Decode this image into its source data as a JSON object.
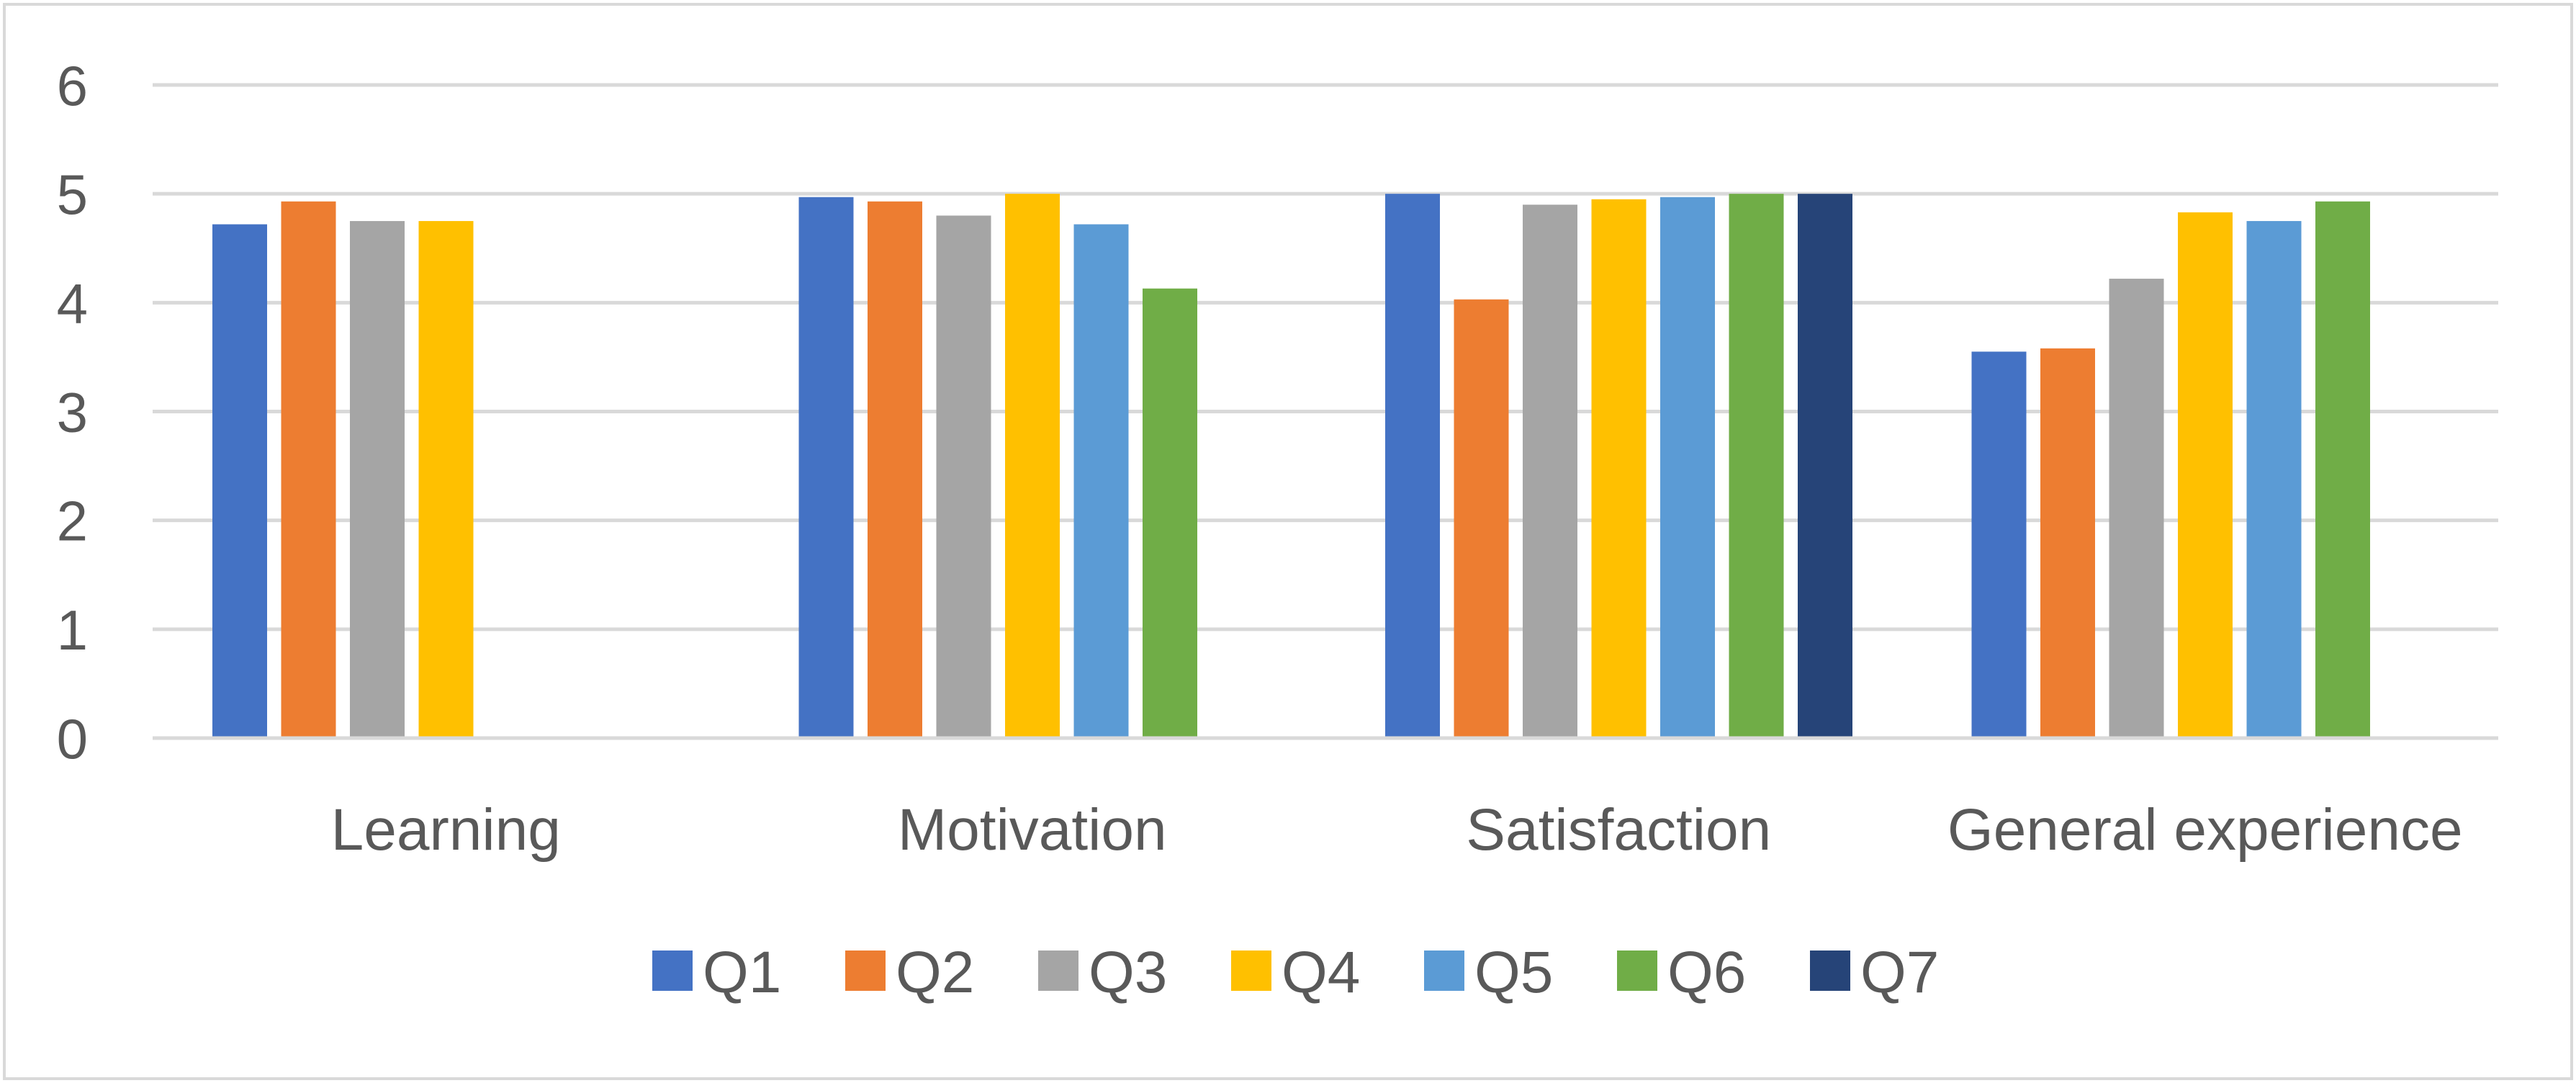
{
  "chart_data": {
    "type": "bar",
    "title": "",
    "xlabel": "",
    "ylabel": "",
    "ylim": [
      0,
      6
    ],
    "yticks": [
      0,
      1,
      2,
      3,
      4,
      5,
      6
    ],
    "grid": true,
    "legend_position": "bottom",
    "categories": [
      "Learning",
      "Motivation",
      "Satisfaction",
      "General experience"
    ],
    "series": [
      {
        "name": "Q1",
        "color": "#4472C4",
        "values": [
          4.72,
          4.97,
          5.0,
          3.55
        ]
      },
      {
        "name": "Q2",
        "color": "#ED7D31",
        "values": [
          4.93,
          4.93,
          4.03,
          3.58
        ]
      },
      {
        "name": "Q3",
        "color": "#A5A5A5",
        "values": [
          4.75,
          4.8,
          4.9,
          4.22
        ]
      },
      {
        "name": "Q4",
        "color": "#FFC000",
        "values": [
          4.75,
          5.0,
          4.95,
          4.83
        ]
      },
      {
        "name": "Q5",
        "color": "#5B9BD5",
        "values": [
          null,
          4.72,
          4.97,
          4.75
        ]
      },
      {
        "name": "Q6",
        "color": "#70AD47",
        "values": [
          null,
          4.13,
          5.0,
          4.93
        ]
      },
      {
        "name": "Q7",
        "color": "#264478",
        "values": [
          null,
          null,
          5.0,
          null
        ]
      }
    ]
  }
}
